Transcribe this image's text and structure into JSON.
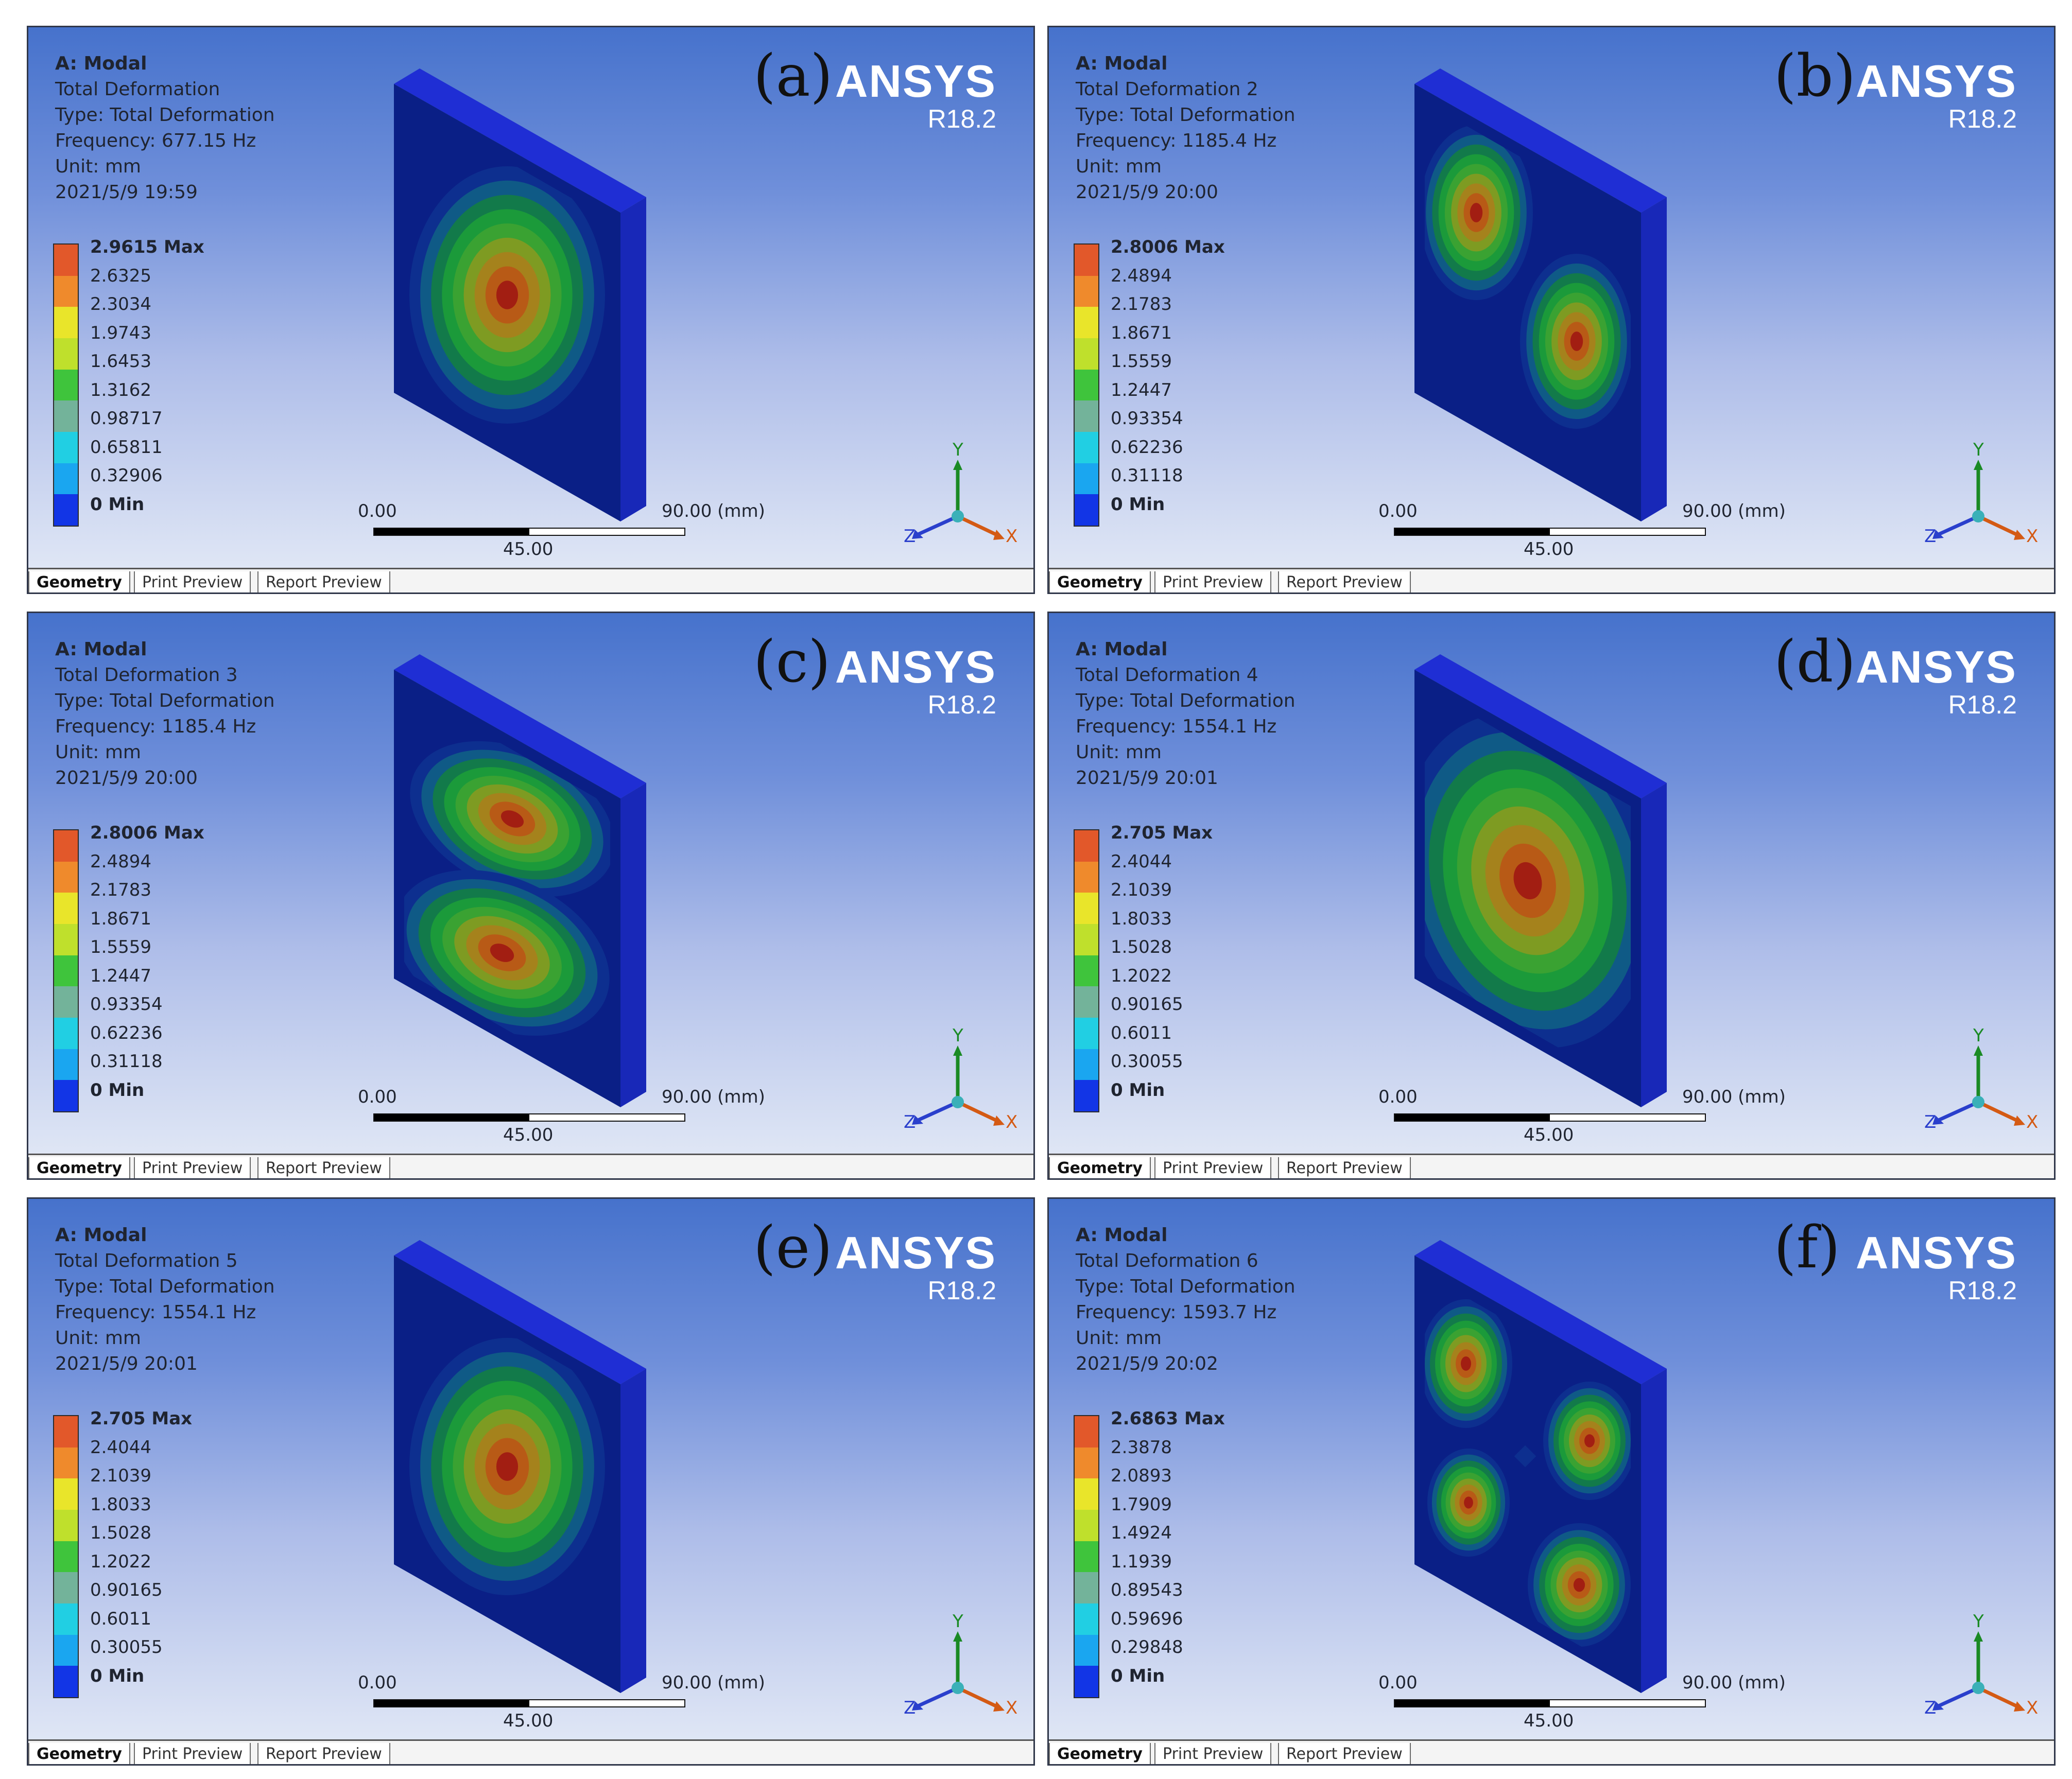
{
  "panels": [
    {
      "label": "(a)",
      "info": [
        "A: Modal",
        "Total Deformation",
        "Type: Total Deformation",
        "Frequency: 677.15 Hz",
        "Unit: mm",
        "2021/5/9 19:59"
      ],
      "legend": [
        "2.9615 Max",
        "2.6325",
        "2.3034",
        "1.9743",
        "1.6453",
        "1.3162",
        "0.98717",
        "0.65811",
        "0.32906",
        "0 Min"
      ],
      "mode": "single"
    },
    {
      "label": "(b)",
      "info": [
        "A: Modal",
        "Total Deformation 2",
        "Type: Total Deformation",
        "Frequency: 1185.4 Hz",
        "Unit: mm",
        "2021/5/9 20:00"
      ],
      "legend": [
        "2.8006 Max",
        "2.4894",
        "2.1783",
        "1.8671",
        "1.5559",
        "1.2447",
        "0.93354",
        "0.62236",
        "0.31118",
        "0 Min"
      ],
      "mode": "diag-two"
    },
    {
      "label": "(c)",
      "info": [
        "A: Modal",
        "Total Deformation 3",
        "Type: Total Deformation",
        "Frequency: 1185.4 Hz",
        "Unit: mm",
        "2021/5/9 20:00"
      ],
      "legend": [
        "2.8006 Max",
        "2.4894",
        "2.1783",
        "1.8671",
        "1.5559",
        "1.2447",
        "0.93354",
        "0.62236",
        "0.31118",
        "0 Min"
      ],
      "mode": "vert-two"
    },
    {
      "label": "(d)",
      "info": [
        "A: Modal",
        "Total Deformation 4",
        "Type: Total Deformation",
        "Frequency: 1554.1 Hz",
        "Unit: mm",
        "2021/5/9 20:01"
      ],
      "legend": [
        "2.705 Max",
        "2.4044",
        "2.1039",
        "1.8033",
        "1.5028",
        "1.2022",
        "0.90165",
        "0.6011",
        "0.30055",
        "0 Min"
      ],
      "mode": "single-big"
    },
    {
      "label": "(e)",
      "info": [
        "A: Modal",
        "Total Deformation 5",
        "Type: Total Deformation",
        "Frequency: 1554.1 Hz",
        "Unit: mm",
        "2021/5/9 20:01"
      ],
      "legend": [
        "2.705 Max",
        "2.4044",
        "2.1039",
        "1.8033",
        "1.5028",
        "1.2022",
        "0.90165",
        "0.6011",
        "0.30055",
        "0 Min"
      ],
      "mode": "single"
    },
    {
      "label": "(f)",
      "info": [
        "A: Modal",
        "Total Deformation 6",
        "Type: Total Deformation",
        "Frequency: 1593.7 Hz",
        "Unit: mm",
        "2021/5/9 20:02"
      ],
      "legend": [
        "2.6863 Max",
        "2.3878",
        "2.0893",
        "1.7909",
        "1.4924",
        "1.1939",
        "0.89543",
        "0.59696",
        "0.29848",
        "0 Min"
      ],
      "mode": "four"
    }
  ],
  "brand": {
    "name": "ANSYS",
    "version": "R18.2"
  },
  "scale": {
    "start": "0.00",
    "end": "90.00 (mm)",
    "mid": "45.00"
  },
  "axes": {
    "x": "X",
    "y": "Y",
    "z": "Z"
  },
  "tabs": [
    "Geometry",
    "Print Preview",
    "Report Preview"
  ],
  "colors": {
    "legend": [
      "#e2582a",
      "#ef8a2c",
      "#e9e52a",
      "#bfe02c",
      "#3fc43c",
      "#73b39a",
      "#21cfe3",
      "#1aa6f0",
      "#1235e6"
    ],
    "plate_top": "#1f2ed4",
    "plate_side": "#1828b8",
    "plate_face": "#0a1f86"
  }
}
